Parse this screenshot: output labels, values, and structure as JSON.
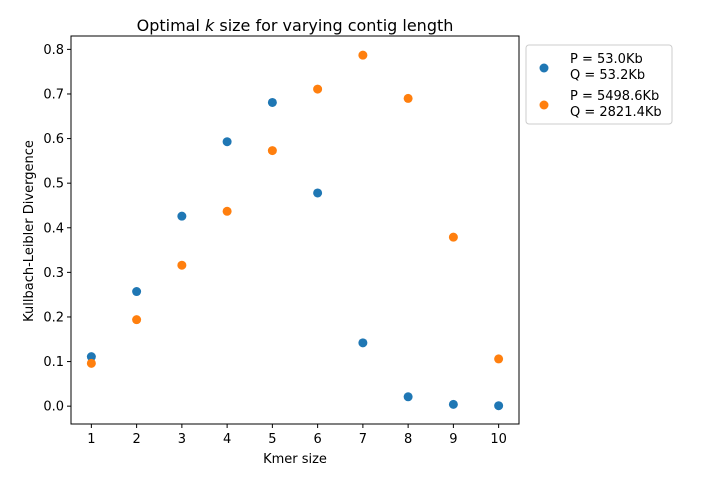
{
  "chart_data": {
    "type": "scatter",
    "title": "Optimal k size for varying contig length",
    "title_parts": {
      "before": "Optimal ",
      "italic": "k",
      "after": " size for varying contig length"
    },
    "xlabel": "Kmer size",
    "ylabel": "Kullbach-Leibler Divergence",
    "xlim": [
      0.55,
      10.45
    ],
    "ylim": [
      -0.04,
      0.83
    ],
    "xticks": [
      1,
      2,
      3,
      4,
      5,
      6,
      7,
      8,
      9,
      10
    ],
    "yticks": [
      0.0,
      0.1,
      0.2,
      0.3,
      0.4,
      0.5,
      0.6,
      0.7,
      0.8
    ],
    "ytick_labels": [
      "0.0",
      "0.1",
      "0.2",
      "0.3",
      "0.4",
      "0.5",
      "0.6",
      "0.7",
      "0.8"
    ],
    "grid": false,
    "legend_position": "outside-top-right",
    "series": [
      {
        "name_lines": [
          "P = 53.0Kb",
          "Q = 53.2Kb"
        ],
        "color": "#1f77b4",
        "x": [
          1,
          2,
          3,
          4,
          5,
          6,
          7,
          8,
          9,
          10
        ],
        "y": [
          0.111,
          0.257,
          0.426,
          0.593,
          0.681,
          0.478,
          0.142,
          0.021,
          0.004,
          0.001
        ]
      },
      {
        "name_lines": [
          "P = 5498.6Kb",
          "Q = 2821.4Kb"
        ],
        "color": "#ff7f0e",
        "x": [
          1,
          2,
          3,
          4,
          5,
          6,
          7,
          8,
          9,
          10
        ],
        "y": [
          0.096,
          0.194,
          0.316,
          0.437,
          0.573,
          0.711,
          0.787,
          0.69,
          0.379,
          0.106
        ]
      }
    ]
  }
}
